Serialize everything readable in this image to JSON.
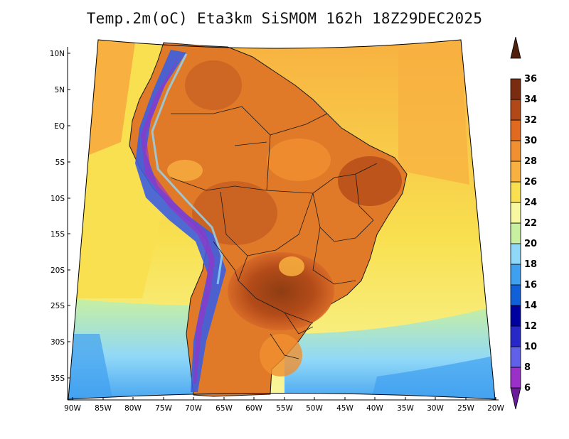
{
  "title": "Temp.2m(oC) Eta3km SiSMOM 162h 18Z29DEC2025",
  "map": {
    "variable": "2 m air temperature",
    "unit": "oC",
    "lat_labels": [
      "10N",
      "5N",
      "EQ",
      "5S",
      "10S",
      "15S",
      "20S",
      "25S",
      "30S",
      "35S"
    ],
    "lon_labels": [
      "90W",
      "85W",
      "80W",
      "75W",
      "70W",
      "65W",
      "60W",
      "55W",
      "50W",
      "45W",
      "40W",
      "35W",
      "30W",
      "25W",
      "20W"
    ]
  },
  "colorbar": {
    "levels": [
      "6",
      "8",
      "10",
      "12",
      "14",
      "16",
      "18",
      "20",
      "22",
      "24",
      "26",
      "28",
      "30",
      "32",
      "34",
      "36"
    ],
    "colors": [
      "#6a1b9a",
      "#9b30c8",
      "#6060e8",
      "#2828c8",
      "#0000a0",
      "#1060d8",
      "#40a0f0",
      "#90d8f8",
      "#c8f0a0",
      "#f8f8a0",
      "#f8e050",
      "#f8b040",
      "#f09030",
      "#e06a20",
      "#b04818",
      "#7a2c10",
      "#50200c"
    ]
  }
}
